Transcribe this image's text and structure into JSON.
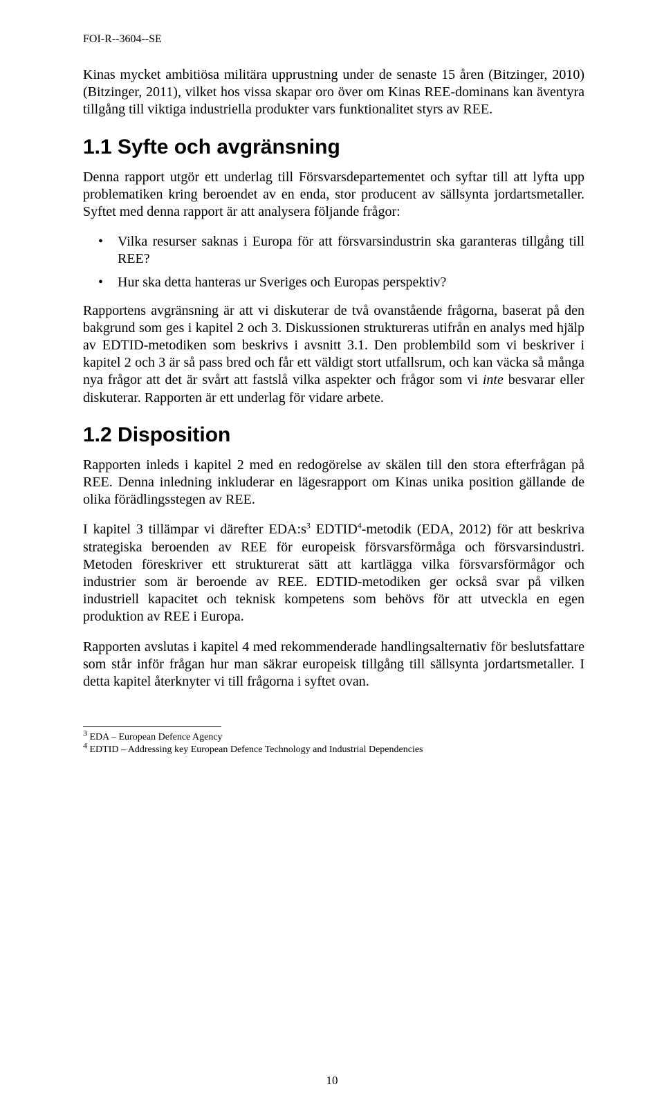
{
  "header": {
    "doc_id": "FOI-R--3604--SE"
  },
  "intro_para": "Kinas mycket ambitiösa militära upprustning under de senaste 15 åren (Bitzinger, 2010) (Bitzinger, 2011), vilket hos vissa skapar oro över om Kinas REE-dominans kan äventyra tillgång till viktiga industriella produkter vars funktionalitet styrs av REE.",
  "section_1_1": {
    "heading": "1.1  Syfte och avgränsning",
    "para1": "Denna rapport utgör ett underlag till Försvarsdepartementet och syftar till att lyfta upp problematiken kring beroendet av en enda, stor producent av sällsynta jordartsmetaller. Syftet med denna rapport är att analysera följande frågor:",
    "bullets": [
      "Vilka resurser saknas i Europa för att försvarsindustrin ska garanteras tillgång till REE?",
      "Hur ska detta hanteras ur Sveriges och Europas perspektiv?"
    ],
    "para2_pre": "Rapportens avgränsning är att vi diskuterar de två ovanstående frågorna, baserat på den bakgrund som ges i kapitel 2 och 3. Diskussionen struktureras utifrån en analys med hjälp av EDTID-metodiken som beskrivs i avsnitt 3.1. Den problembild som vi beskriver i kapitel 2 och 3 är så pass bred och får ett väldigt stort utfallsrum, och kan väcka så många nya frågor att det är svårt att fastslå vilka aspekter och frågor som vi ",
    "para2_italic": "inte",
    "para2_post": " besvarar eller diskuterar. Rapporten är ett underlag för vidare arbete."
  },
  "section_1_2": {
    "heading": "1.2  Disposition",
    "para1": "Rapporten inleds i kapitel 2 med en redogörelse av skälen till den stora efterfrågan på REE. Denna inledning inkluderar en lägesrapport om Kinas unika position gällande de olika förädlingsstegen av REE.",
    "para2_a": "I kapitel 3 tillämpar vi därefter EDA:s",
    "para2_sup1": "3",
    "para2_b": " EDTID",
    "para2_sup2": "4",
    "para2_c": "-metodik (EDA, 2012) för att beskriva strategiska beroenden av REE för europeisk försvarsförmåga och försvarsindustri. Metoden föreskriver ett strukturerat sätt att kartlägga vilka försvarsförmågor och industrier som är beroende av REE. EDTID-metodiken ger också svar på vilken industriell kapacitet och teknisk kompetens som behövs för att utveckla en egen produktion av REE i Europa.",
    "para3": "Rapporten avslutas i kapitel 4 med rekommenderade handlingsalternativ för beslutsfattare som står inför frågan hur man säkrar europeisk tillgång till sällsynta jordartsmetaller. I detta kapitel återknyter vi till frågorna i syftet ovan."
  },
  "footnotes": {
    "fn3_num": "3",
    "fn3_text": " EDA – European Defence Agency",
    "fn4_num": "4",
    "fn4_text": " EDTID – Addressing key European Defence Technology and Industrial Dependencies"
  },
  "page_number": "10"
}
